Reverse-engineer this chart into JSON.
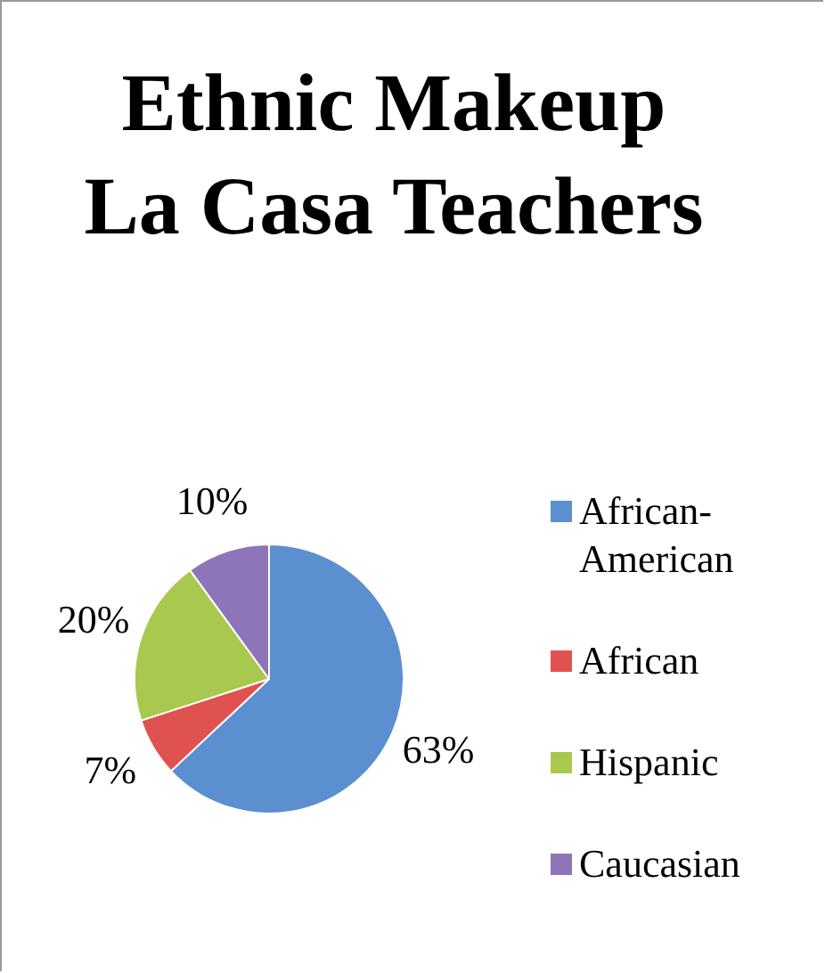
{
  "chart_data": {
    "type": "pie",
    "title": "Ethnic Makeup La Casa Teachers",
    "categories": [
      "African-American",
      "African",
      "Hispanic",
      "Caucasian"
    ],
    "values": [
      63,
      7,
      20,
      10
    ],
    "colors": [
      "#5b8fd0",
      "#e0524f",
      "#a8c94e",
      "#8e74b8"
    ],
    "value_labels": [
      "63%",
      "7%",
      "20%",
      "10%"
    ],
    "legend": "right"
  }
}
